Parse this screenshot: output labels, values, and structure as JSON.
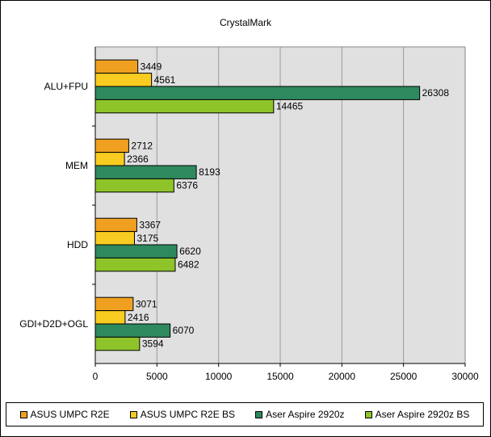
{
  "chart_data": {
    "type": "bar",
    "orientation": "horizontal",
    "title": "CrystalMark",
    "categories": [
      "ALU+FPU",
      "MEM",
      "HDD",
      "GDI+D2D+OGL"
    ],
    "series": [
      {
        "name": "ASUS UMPC R2E",
        "color": "#f0a020",
        "values": [
          3449,
          2712,
          3367,
          3071
        ]
      },
      {
        "name": "ASUS UMPC R2E BS",
        "color": "#f8cc20",
        "values": [
          4561,
          2366,
          3175,
          2416
        ]
      },
      {
        "name": "Aser Aspire 2920z",
        "color": "#2e8a5e",
        "values": [
          26308,
          8193,
          6620,
          6070
        ]
      },
      {
        "name": "Aser Aspire 2920z BS",
        "color": "#8ec42a",
        "values": [
          14465,
          6376,
          6482,
          3594
        ]
      }
    ],
    "xlim": [
      0,
      30000
    ],
    "xticks": [
      "0",
      "5000",
      "10000",
      "15000",
      "20000",
      "25000",
      "30000"
    ],
    "grid": true,
    "legend_position": "bottom",
    "plot_background": "#e0e0e0"
  }
}
